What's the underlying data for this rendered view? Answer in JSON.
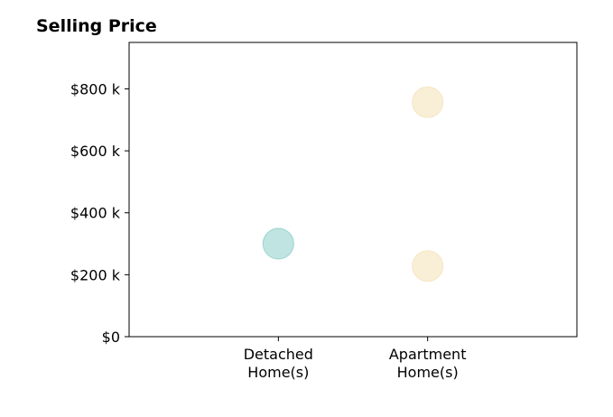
{
  "chart_data": {
    "type": "scatter",
    "title": "Selling Price",
    "xlabel": "",
    "ylabel": "",
    "categories": [
      [
        "Detached",
        "Home(s)"
      ],
      [
        "Apartment",
        "Home(s)"
      ]
    ],
    "xlim": [
      0,
      3
    ],
    "ylim": [
      0,
      950
    ],
    "y_ticks": [
      0,
      200,
      400,
      600,
      800
    ],
    "y_tick_labels": [
      "$0",
      "$200 k",
      "$400 k",
      "$600 k",
      "$800 k"
    ],
    "grid": false,
    "points": [
      {
        "category": "Detached Home(s)",
        "x": 1,
        "y": 300,
        "color": "#7fc9c3"
      },
      {
        "category": "Apartment Home(s)",
        "x": 2,
        "y": 757,
        "color": "#f3dfb0"
      },
      {
        "category": "Apartment Home(s)",
        "x": 2,
        "y": 228,
        "color": "#f3dfb0"
      }
    ],
    "marker_opacity": 0.5
  }
}
